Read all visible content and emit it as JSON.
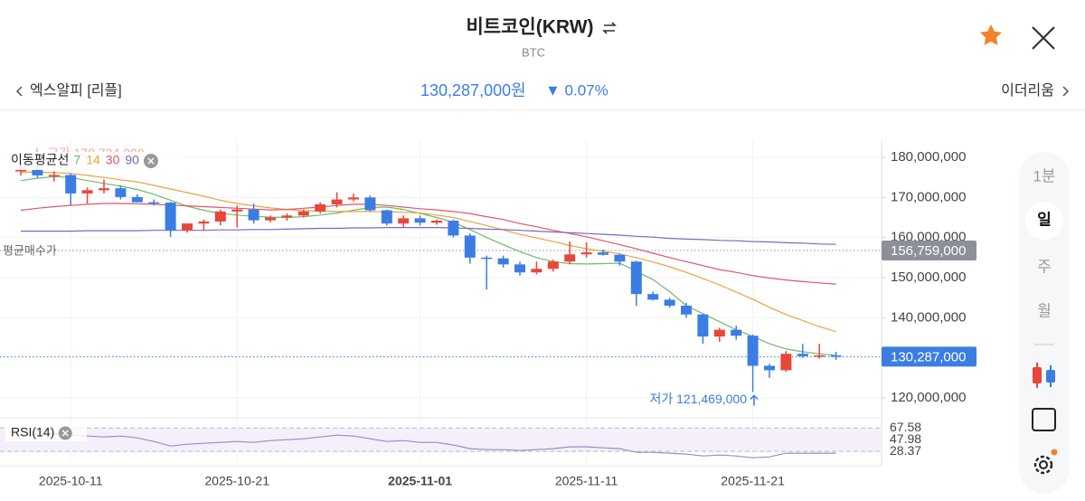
{
  "header": {
    "title": "비트코인(KRW)",
    "subtitle": "BTC"
  },
  "nav": {
    "prev": "엑스알피 [리플]",
    "price": "130,287,000원",
    "change": "▼ 0.07%",
    "next": "이더리움"
  },
  "toolbar": {
    "intervals": [
      "1분",
      "일",
      "주",
      "월"
    ]
  },
  "chart_data": [
    {
      "type": "candlestick",
      "categories": [
        null,
        null,
        null,
        "2025-10-11",
        null,
        null,
        null,
        null,
        null,
        null,
        null,
        null,
        null,
        "2025-10-21",
        null,
        null,
        null,
        null,
        null,
        null,
        null,
        null,
        null,
        null,
        "2025-11-01",
        null,
        null,
        null,
        null,
        null,
        null,
        null,
        null,
        null,
        "2025-11-11",
        null,
        null,
        null,
        null,
        null,
        null,
        null,
        null,
        null,
        "2025-11-21",
        null,
        null,
        null,
        null,
        null
      ],
      "open": [
        176500000,
        177000000,
        175500000,
        175600000,
        171000000,
        171800000,
        172300000,
        170100000,
        168800000,
        168700000,
        161800000,
        163500000,
        164000000,
        166500000,
        167000000,
        164300000,
        165000000,
        165500000,
        166500000,
        168300000,
        169500000,
        170000000,
        166800000,
        163500000,
        164800000,
        163700000,
        164200000,
        160500000,
        155000000,
        154800000,
        153300000,
        151300000,
        152200000,
        154000000,
        155800000,
        156300000,
        155700000,
        154000000,
        145900000,
        144500000,
        143000000,
        140800000,
        135300000,
        137000000,
        135500000,
        128000000,
        126900000,
        131000000,
        130400000,
        130600000
      ],
      "high": [
        178000000,
        179734000,
        176500000,
        176000000,
        172500000,
        174500000,
        173000000,
        170800000,
        169500000,
        168900000,
        163500000,
        164500000,
        167000000,
        168000000,
        168500000,
        165500000,
        166000000,
        167000000,
        168800000,
        171300000,
        171000000,
        170500000,
        167000000,
        165500000,
        165500000,
        164500000,
        164500000,
        161000000,
        155500000,
        155500000,
        154000000,
        154000000,
        154500000,
        159000000,
        158800000,
        157000000,
        156000000,
        154200000,
        146500000,
        145000000,
        143700000,
        141000000,
        137500000,
        138000000,
        135800000,
        128500000,
        131700000,
        133500000,
        133500000,
        131500000
      ],
      "low": [
        175500000,
        174800000,
        174000000,
        168000000,
        168500000,
        171000000,
        169500000,
        168800000,
        168000000,
        160200000,
        161200000,
        161800000,
        163000000,
        162500000,
        163500000,
        163800000,
        164200000,
        165000000,
        166000000,
        167500000,
        169000000,
        166500000,
        163000000,
        162500000,
        163000000,
        163200000,
        160000000,
        153500000,
        147000000,
        152500000,
        150500000,
        150800000,
        151500000,
        153300000,
        155000000,
        155500000,
        153000000,
        143000000,
        144300000,
        142500000,
        140000000,
        133500000,
        134000000,
        134500000,
        121469000,
        125000000,
        126500000,
        130000000,
        129800000,
        129500000
      ],
      "close": [
        177000000,
        175500000,
        175600000,
        171000000,
        171800000,
        172300000,
        170100000,
        168800000,
        168700000,
        161800000,
        163500000,
        164000000,
        166500000,
        167000000,
        164300000,
        165000000,
        165500000,
        166500000,
        168300000,
        169500000,
        170000000,
        166800000,
        163500000,
        164800000,
        163700000,
        164200000,
        160500000,
        155000000,
        154800000,
        153300000,
        151300000,
        152200000,
        154000000,
        155800000,
        156300000,
        155700000,
        154000000,
        145900000,
        144500000,
        143000000,
        140800000,
        135300000,
        137000000,
        135500000,
        128000000,
        126900000,
        131000000,
        130400000,
        130600000,
        130287000
      ],
      "up_color": "#e8463a",
      "down_color": "#3b7de3",
      "ylim": [
        115480000,
        184290000
      ],
      "yticks": [
        {
          "value": 120000000,
          "label": "120,000,000"
        },
        {
          "value": 130000000,
          "label": "130,000,000"
        },
        {
          "value": 140000000,
          "label": "140,000,000"
        },
        {
          "value": 150000000,
          "label": "150,000,000"
        },
        {
          "value": 160000000,
          "label": "160,000,000"
        },
        {
          "value": 170000000,
          "label": "170,000,000"
        },
        {
          "value": 180000000,
          "label": "180,000,000"
        }
      ],
      "grid": true,
      "legend_title": "이동평균선",
      "series": [
        {
          "name": "7",
          "color": "#6dbb6a",
          "values": [
            174200000,
            174800000,
            175200000,
            175000000,
            174200000,
            173500000,
            172800000,
            172000000,
            170800000,
            169300000,
            167800000,
            166800000,
            166000000,
            165600000,
            165300000,
            165100000,
            165000000,
            165200000,
            165600000,
            166100000,
            166800000,
            167500000,
            167600000,
            167000000,
            166000000,
            165000000,
            163800000,
            162000000,
            160000000,
            158200000,
            156500000,
            155000000,
            154000000,
            153500000,
            153400000,
            153500000,
            153600000,
            151600000,
            149500000,
            146500000,
            143000000,
            141000000,
            139000000,
            137000000,
            135300000,
            133500000,
            132200000,
            131500000,
            131000000,
            130600000
          ]
        },
        {
          "name": "14",
          "color": "#f0a040",
          "values": [
            176300000,
            176300000,
            176200000,
            176000000,
            175500000,
            175000000,
            174400000,
            173900000,
            173000000,
            172100000,
            171200000,
            170300000,
            169300000,
            168500000,
            167900000,
            167400000,
            167000000,
            166700000,
            166600000,
            166500000,
            166500000,
            166500000,
            166400000,
            166300000,
            166100000,
            165600000,
            165000000,
            164000000,
            163000000,
            161900000,
            160800000,
            159900000,
            159000000,
            158000000,
            157200000,
            156600000,
            155900000,
            155000000,
            153900000,
            152700000,
            151300000,
            149800000,
            148200000,
            146400000,
            144600000,
            142600000,
            140800000,
            139300000,
            137800000,
            136500000
          ]
        },
        {
          "name": "30",
          "color": "#e0566a",
          "values": [
            166800000,
            167300000,
            167700000,
            168000000,
            168300000,
            168500000,
            168500000,
            168400000,
            168300000,
            168100000,
            167900000,
            167700000,
            167500000,
            167300000,
            167100000,
            166900000,
            167000000,
            167300000,
            167600000,
            168000000,
            168300000,
            168300000,
            168000000,
            167600000,
            167200000,
            166900000,
            166500000,
            166000000,
            165200000,
            164500000,
            163500000,
            162700000,
            161800000,
            161000000,
            160200000,
            159200000,
            158200000,
            157200000,
            156100000,
            155000000,
            154000000,
            153000000,
            152000000,
            151300000,
            150500000,
            149900000,
            149400000,
            149000000,
            148700000,
            148400000
          ]
        },
        {
          "name": "90",
          "color": "#7a68c2",
          "values": [
            161600000,
            161600000,
            161600000,
            161600000,
            161700000,
            161700000,
            161700000,
            161700000,
            161800000,
            161800000,
            161800000,
            161800000,
            161900000,
            161900000,
            162000000,
            162000000,
            162100000,
            162200000,
            162300000,
            162300000,
            162400000,
            162400000,
            162500000,
            162500000,
            162500000,
            162500000,
            162400000,
            162300000,
            162100000,
            162000000,
            161800000,
            161600000,
            161400000,
            161200000,
            161000000,
            160800000,
            160600000,
            160300000,
            160100000,
            159800000,
            159600000,
            159500000,
            159300000,
            159200000,
            159000000,
            158900000,
            158700000,
            158600000,
            158400000,
            158300000
          ]
        }
      ],
      "reference_lines": [
        {
          "name": "평균매수가",
          "value": 156759000,
          "label": "156,759,000",
          "color": "#8c9098"
        },
        {
          "value": 130287000,
          "label": "130,287,000",
          "color": "#3b7de3"
        }
      ],
      "annotations": [
        {
          "text": "고가 179,734,000",
          "value": 179734000,
          "color": "#f2a9a2"
        },
        {
          "text": "저가 121,469,000",
          "value": 121469000,
          "color": "#3b7de3"
        }
      ]
    },
    {
      "type": "line",
      "title": "RSI(14)",
      "series": [
        {
          "color": "#9b8ac9",
          "values": [
            57.0,
            57.0,
            57.0,
            55.5,
            54.0,
            52.5,
            54.0,
            51.0,
            45.0,
            37.4,
            40.4,
            42.0,
            43.5,
            45.0,
            43.5,
            46.5,
            48.0,
            49.5,
            52.5,
            55.5,
            54.0,
            49.5,
            45.0,
            46.5,
            43.5,
            43.5,
            39.0,
            33.0,
            31.4,
            31.4,
            29.9,
            31.4,
            33.0,
            36.0,
            36.0,
            34.4,
            33.0,
            26.9,
            26.9,
            25.4,
            23.9,
            20.8,
            22.3,
            20.8,
            17.8,
            19.3,
            25.4,
            25.4,
            25.4,
            25.4
          ]
        }
      ],
      "ylim": [
        9,
        80
      ],
      "yticks": [
        67.58,
        47.98,
        28.37
      ],
      "band_color": "#f4effa"
    }
  ]
}
